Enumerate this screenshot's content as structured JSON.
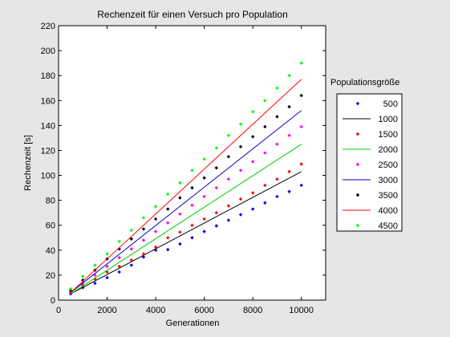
{
  "chart_data": {
    "type": "scatter",
    "title": "Rechenzeit für einen Versuch pro Population",
    "xlabel": "Generationen",
    "ylabel": "Rechenzeit [s]",
    "xlim": [
      0,
      11000
    ],
    "ylim": [
      0,
      220
    ],
    "xticks": [
      0,
      2000,
      4000,
      6000,
      8000,
      10000
    ],
    "yticks": [
      0,
      20,
      40,
      60,
      80,
      100,
      120,
      140,
      160,
      180,
      200,
      220
    ],
    "grid": false,
    "legend": {
      "title": "Populationsgröße",
      "placement": "right-outside"
    },
    "x": [
      500,
      1000,
      1500,
      2000,
      2500,
      3000,
      3500,
      4000,
      4500,
      5000,
      5500,
      6000,
      6500,
      7000,
      7500,
      8000,
      8500,
      9000,
      9500,
      10000
    ],
    "series": [
      {
        "name": "500",
        "kind": "points",
        "color": "#0000ff",
        "values": [
          5,
          10,
          13.5,
          18,
          22.5,
          28,
          34.5,
          40,
          40.5,
          45,
          50,
          55,
          59.5,
          64,
          68.5,
          73,
          78,
          83,
          87,
          92
        ]
      },
      {
        "name": "1000",
        "kind": "line",
        "color": "#000000",
        "line_x": [
          500,
          10000
        ],
        "line_y": [
          5,
          103
        ]
      },
      {
        "name": "1500",
        "kind": "points",
        "color": "#ff0000",
        "values": [
          6,
          12,
          17,
          22.5,
          27,
          32,
          37,
          42.5,
          50,
          54.5,
          60,
          65,
          70,
          75.5,
          81,
          86,
          92,
          97,
          103,
          109
        ]
      },
      {
        "name": "2000",
        "kind": "line",
        "color": "#00cc00",
        "line_x": [
          500,
          10000
        ],
        "line_y": [
          5,
          125
        ]
      },
      {
        "name": "2500",
        "kind": "points",
        "color": "#ff00ff",
        "values": [
          7,
          14,
          20,
          27,
          34,
          41,
          48,
          55,
          62,
          69,
          76,
          83,
          90,
          97,
          104,
          111,
          118,
          125,
          132,
          139
        ]
      },
      {
        "name": "3000",
        "kind": "line",
        "color": "#0000cc",
        "line_x": [
          500,
          10000
        ],
        "line_y": [
          6,
          152
        ]
      },
      {
        "name": "3500",
        "kind": "points",
        "color": "#000000",
        "values": [
          8,
          16,
          24,
          33,
          41,
          49,
          57,
          65,
          73,
          82,
          90,
          98,
          106,
          115,
          123,
          131,
          139,
          147,
          155,
          164
        ]
      },
      {
        "name": "4000",
        "kind": "line",
        "color": "#ff0000",
        "line_x": [
          500,
          10000
        ],
        "line_y": [
          6,
          177
        ]
      },
      {
        "name": "4500",
        "kind": "points",
        "color": "#00ff00",
        "values": [
          9,
          19,
          28,
          37,
          47,
          56,
          66,
          75,
          85,
          94,
          104,
          113,
          122,
          132,
          141,
          151,
          160,
          170,
          180,
          190
        ]
      }
    ]
  }
}
